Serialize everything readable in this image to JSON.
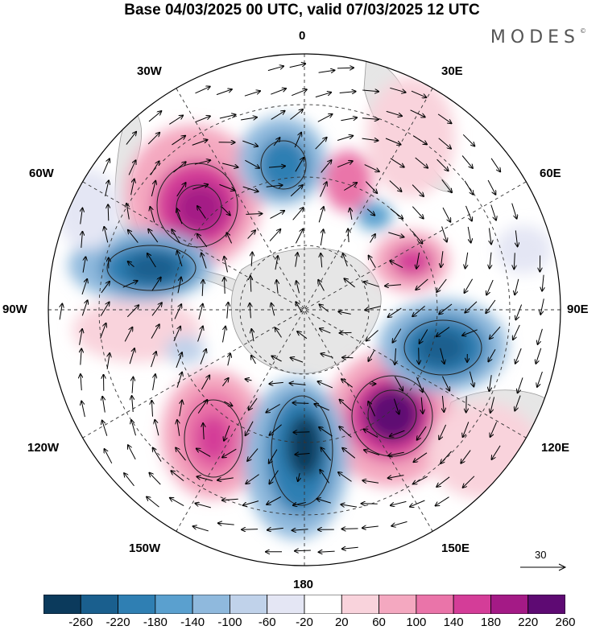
{
  "header": {
    "title": "Base 04/03/2025 00 UTC, valid 07/03/2025 12 UTC",
    "brand": "MODES"
  },
  "map": {
    "projection": "south-polar-stereographic",
    "longitude_labels": {
      "lon_0": "0",
      "lon_30e": "30E",
      "lon_60e": "60E",
      "lon_90e": "90E",
      "lon_120e": "120E",
      "lon_150e": "150E",
      "lon_180": "180",
      "lon_150w": "150W",
      "lon_120w": "120W",
      "lon_90w": "90W",
      "lon_60w": "60W",
      "lon_30w": "30W"
    },
    "reference_vector": {
      "label": "30"
    }
  },
  "colorbar": {
    "labels": [
      "-260",
      "-220",
      "-180",
      "-140",
      "-100",
      "-60",
      "-20",
      "20",
      "60",
      "100",
      "140",
      "180",
      "220",
      "260"
    ],
    "colors": [
      "#0b3a5c",
      "#1a5f8e",
      "#2f7fb3",
      "#5aa0cf",
      "#8fb9dd",
      "#c0d2ea",
      "#e4e6f4",
      "#ffffff",
      "#f9d3dc",
      "#f4a8c0",
      "#ea74a9",
      "#d43d98",
      "#a41a86",
      "#5e0a73"
    ]
  }
}
